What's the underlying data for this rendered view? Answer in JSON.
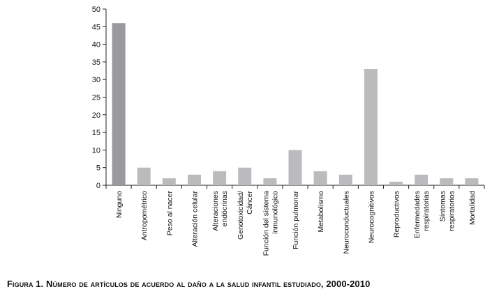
{
  "chart_data": {
    "type": "bar",
    "title": "",
    "xlabel": "",
    "ylabel": "",
    "ylim": [
      0,
      50
    ],
    "yticks": [
      0,
      5,
      10,
      15,
      20,
      25,
      30,
      35,
      40,
      45,
      50
    ],
    "categories": [
      [
        "Ninguno"
      ],
      [
        "Antropométrico"
      ],
      [
        "Peso al nacer"
      ],
      [
        "Alteración celular"
      ],
      [
        "Alteraciones",
        "endócrinas"
      ],
      [
        "Genotoxicidad/",
        "Cáncer"
      ],
      [
        "Función del sistema",
        "inmunológico"
      ],
      [
        "Función pulmonar"
      ],
      [
        "Metabolismo"
      ],
      [
        "Neuroconductuales"
      ],
      [
        "Neurocognitivos"
      ],
      [
        "Reproductivos"
      ],
      [
        "Enfermedades",
        "respiratorias"
      ],
      [
        "Síntomas",
        "respiratorios"
      ],
      [
        "Mortalidad"
      ]
    ],
    "values": [
      46,
      5,
      2,
      3,
      4,
      5,
      2,
      10,
      4,
      3,
      33,
      1,
      3,
      2,
      2
    ],
    "colors": {
      "highlight": "#9a9a9c",
      "bar": "#bbbbbd",
      "axis": "#222222"
    }
  },
  "caption": "Figura 1. Número de artículos de acuerdo al daño a la salud infantil estudiado, 2000-2010"
}
